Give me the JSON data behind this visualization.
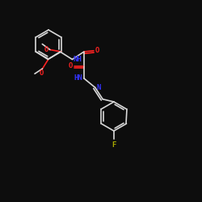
{
  "bg_color": "#0d0d0d",
  "bond_color": "#d8d8d8",
  "atom_colors": {
    "O": "#ff2222",
    "N": "#3333ff",
    "F": "#aaaa00",
    "C": "#d8d8d8"
  },
  "figsize": [
    2.5,
    2.5
  ],
  "dpi": 100
}
